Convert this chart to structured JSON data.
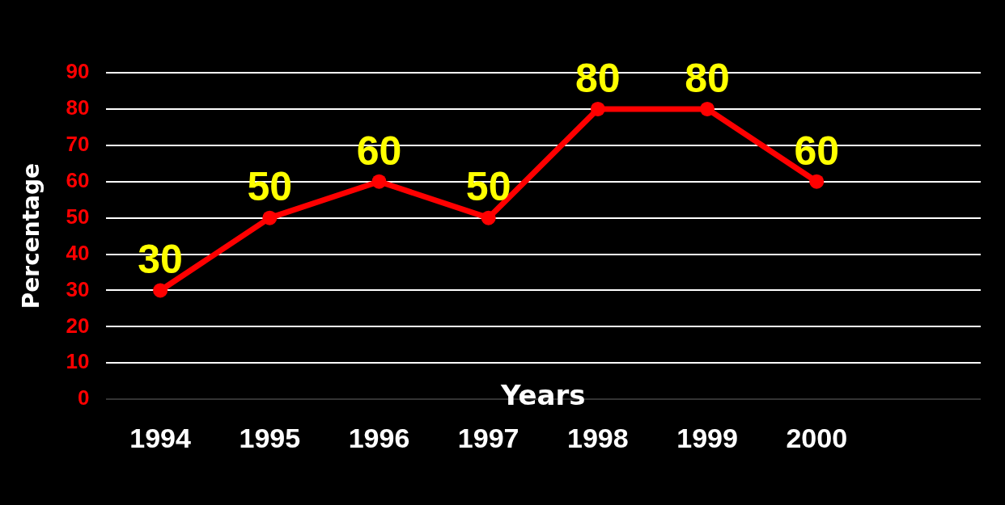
{
  "chart_data": {
    "type": "line",
    "xlabel": "Years",
    "ylabel": "Percentage",
    "categories": [
      "1994",
      "1995",
      "1996",
      "1997",
      "1998",
      "1999",
      "2000",
      null
    ],
    "series": [
      {
        "color": "#ff0000",
        "values": [
          30,
          50,
          60,
          50,
          80,
          80,
          60,
          null
        ]
      }
    ],
    "ylim": [
      0,
      90
    ],
    "yticks": [
      0,
      10,
      20,
      30,
      40,
      50,
      60,
      70,
      80,
      90
    ],
    "grid": "y",
    "legend": false,
    "marker": "circle",
    "line_style": "solid",
    "data_labels": true
  }
}
